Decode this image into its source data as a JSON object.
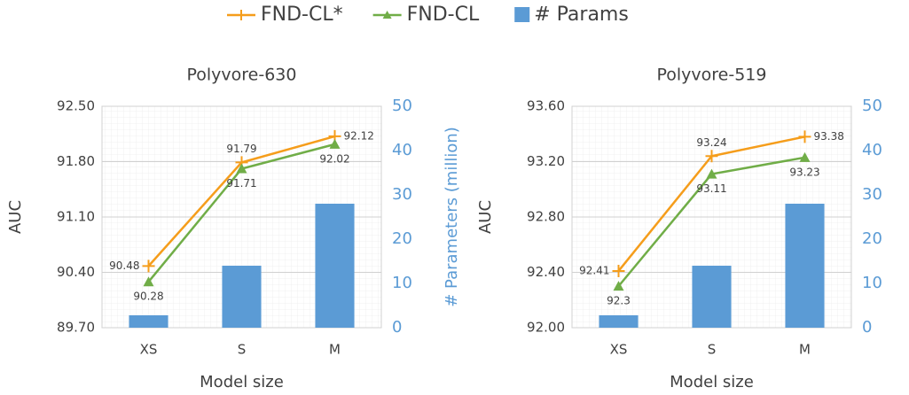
{
  "chart_data": [
    {
      "type": "combo",
      "title": "Polyvore-630",
      "xlabel": "Model size",
      "ylabel": "AUC",
      "y2label": "# Parameters (million)",
      "categories": [
        "XS",
        "S",
        "M"
      ],
      "ylim": [
        89.7,
        92.5
      ],
      "yticks": [
        {
          "value": 89.7,
          "label": "89.70"
        },
        {
          "value": 90.4,
          "label": "90.40"
        },
        {
          "value": 91.1,
          "label": "91.10"
        },
        {
          "value": 91.8,
          "label": "91.80"
        },
        {
          "value": 92.5,
          "label": "92.50"
        }
      ],
      "y2lim": [
        0,
        50
      ],
      "y2ticks": [
        0,
        10,
        20,
        30,
        40,
        50
      ],
      "grid": true,
      "series": [
        {
          "name": "FND-CL*",
          "type": "line",
          "marker": "plus",
          "color": "#f59d1b",
          "values": [
            90.48,
            91.79,
            92.12
          ]
        },
        {
          "name": "FND-CL",
          "type": "line",
          "marker": "triangle",
          "color": "#70ad47",
          "values": [
            90.28,
            91.71,
            92.02
          ]
        },
        {
          "name": "# Params",
          "type": "bar",
          "axis": "y2",
          "color": "#5b9bd5",
          "values": [
            2.8,
            14,
            28
          ]
        }
      ]
    },
    {
      "type": "combo",
      "title": "Polyvore-519",
      "xlabel": "Model size",
      "ylabel": "AUC",
      "y2label": "# Parameters (million)",
      "categories": [
        "XS",
        "S",
        "M"
      ],
      "ylim": [
        92.0,
        93.6
      ],
      "yticks": [
        {
          "value": 92.0,
          "label": "92.00"
        },
        {
          "value": 92.4,
          "label": "92.40"
        },
        {
          "value": 92.8,
          "label": "92.80"
        },
        {
          "value": 93.2,
          "label": "93.20"
        },
        {
          "value": 93.6,
          "label": "93.60"
        }
      ],
      "y2lim": [
        0,
        50
      ],
      "y2ticks": [
        0,
        10,
        20,
        30,
        40,
        50
      ],
      "grid": true,
      "series": [
        {
          "name": "FND-CL*",
          "type": "line",
          "marker": "plus",
          "color": "#f59d1b",
          "values": [
            92.41,
            93.24,
            93.38
          ]
        },
        {
          "name": "FND-CL",
          "type": "line",
          "marker": "triangle",
          "color": "#70ad47",
          "values": [
            92.3,
            93.11,
            93.23
          ]
        },
        {
          "name": "# Params",
          "type": "bar",
          "axis": "y2",
          "color": "#5b9bd5",
          "values": [
            2.8,
            14,
            28
          ]
        }
      ]
    }
  ]
}
